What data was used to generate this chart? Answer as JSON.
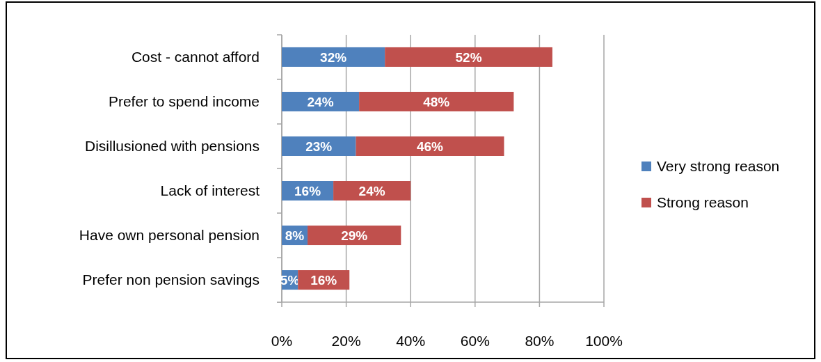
{
  "chart_data": {
    "type": "bar",
    "orientation": "horizontal",
    "stacked": true,
    "categories": [
      "Cost - cannot afford",
      "Prefer to spend income",
      "Disillusioned with pensions",
      "Lack of interest",
      "Have own personal pension",
      "Prefer non pension savings"
    ],
    "series": [
      {
        "name": "Very strong reason",
        "color": "#4f81bd",
        "values": [
          32,
          24,
          23,
          16,
          8,
          5
        ],
        "value_labels": [
          "32%",
          "24%",
          "23%",
          "16%",
          "8%",
          "5%"
        ]
      },
      {
        "name": "Strong reason",
        "color": "#c0504d",
        "values": [
          52,
          48,
          46,
          24,
          29,
          16
        ],
        "value_labels": [
          "52%",
          "48%",
          "46%",
          "24%",
          "29%",
          "16%"
        ]
      }
    ],
    "xlim": [
      0,
      100
    ],
    "xticks": [
      {
        "value": 0,
        "label": "0%"
      },
      {
        "value": 20,
        "label": "20%"
      },
      {
        "value": 40,
        "label": "40%"
      },
      {
        "value": 60,
        "label": "60%"
      },
      {
        "value": 80,
        "label": "80%"
      },
      {
        "value": 100,
        "label": "100%"
      }
    ],
    "grid": "x",
    "legend": "right"
  }
}
